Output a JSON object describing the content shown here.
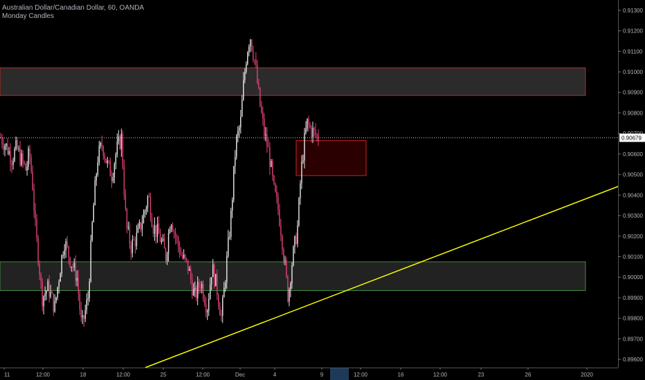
{
  "header": {
    "symbol_line": "Australian Dollar/Canadian Dollar, 60, OANDA",
    "indicator_line": "Monday Candles"
  },
  "colors": {
    "background": "#000000",
    "up_candle": "#e8e8e8",
    "down_candle": "#e0407a",
    "trendline": "#ffff00",
    "resistance_border": "#cc2222",
    "resistance_fill": "#2b2b2b",
    "support_border": "#3f8f3f",
    "support_fill": "#222222",
    "small_zone_fill": "#2a0000",
    "axis_text": "#b2b5be",
    "price_tag_bg": "#ffffff"
  },
  "chart_data": {
    "type": "candlestick",
    "symbol": "Australian Dollar/Canadian Dollar",
    "interval": "60",
    "source": "OANDA",
    "indicator": "Monday Candles",
    "ylim": [
      0.8956,
      0.9135
    ],
    "y_ticks": [
      0.913,
      0.912,
      0.911,
      0.91,
      0.909,
      0.908,
      0.907,
      0.906,
      0.905,
      0.904,
      0.903,
      0.902,
      0.901,
      0.9,
      0.899,
      0.898,
      0.897,
      0.896
    ],
    "y_tick_labels": [
      "0.91300",
      "0.91200",
      "0.91100",
      "0.91000",
      "0.90900",
      "0.90800",
      "0.90700",
      "0.90600",
      "0.90500",
      "0.90400",
      "0.90300",
      "0.90200",
      "0.90100",
      "0.90000",
      "0.89900",
      "0.89800",
      "0.89700",
      "0.89600"
    ],
    "current_price": 0.90679,
    "current_price_label": "0.90679",
    "x_ticks": [
      {
        "label": "11",
        "x": 0
      },
      {
        "label": "12:00",
        "x": 1
      },
      {
        "label": "18",
        "x": 2
      },
      {
        "label": "12:00",
        "x": 3
      },
      {
        "label": "25",
        "x": 4
      },
      {
        "label": "12:00",
        "x": 5
      },
      {
        "label": "Dec",
        "x": 6
      },
      {
        "label": "4",
        "x": 7
      },
      {
        "label": "9",
        "x": 8
      },
      {
        "label": "12:00",
        "x": 9
      },
      {
        "label": "16",
        "x": 10
      },
      {
        "label": "12:00",
        "x": 11
      },
      {
        "label": "23",
        "x": 12
      },
      {
        "label": "26",
        "x": 13
      },
      {
        "label": "2020",
        "x": 14
      }
    ],
    "price_path": [
      [
        0.0,
        0.9068
      ],
      [
        0.02,
        0.9063
      ],
      [
        0.035,
        0.9058
      ],
      [
        0.05,
        0.9063
      ],
      [
        0.065,
        0.9057
      ],
      [
        0.08,
        0.9052
      ],
      [
        0.09,
        0.9061
      ],
      [
        0.1,
        0.9046
      ],
      [
        0.11,
        0.9022
      ],
      [
        0.12,
        0.9008
      ],
      [
        0.13,
        0.899
      ],
      [
        0.15,
        0.8995
      ],
      [
        0.17,
        0.8985
      ],
      [
        0.185,
        0.9002
      ],
      [
        0.2,
        0.9018
      ],
      [
        0.22,
        0.9008
      ],
      [
        0.24,
        0.9
      ],
      [
        0.255,
        0.8975
      ],
      [
        0.275,
        0.899
      ],
      [
        0.29,
        0.903
      ],
      [
        0.305,
        0.9058
      ],
      [
        0.32,
        0.9065
      ],
      [
        0.335,
        0.9055
      ],
      [
        0.35,
        0.905
      ],
      [
        0.365,
        0.9062
      ],
      [
        0.38,
        0.9068
      ],
      [
        0.395,
        0.9025
      ],
      [
        0.41,
        0.9015
      ],
      [
        0.43,
        0.902
      ],
      [
        0.45,
        0.903
      ],
      [
        0.465,
        0.904
      ],
      [
        0.48,
        0.9025
      ],
      [
        0.5,
        0.902
      ],
      [
        0.52,
        0.901
      ],
      [
        0.535,
        0.903
      ],
      [
        0.55,
        0.902
      ],
      [
        0.57,
        0.901
      ],
      [
        0.59,
        0.9005
      ],
      [
        0.61,
        0.899
      ],
      [
        0.63,
        0.8998
      ],
      [
        0.65,
        0.8985
      ],
      [
        0.665,
        0.9005
      ],
      [
        0.68,
        0.8995
      ],
      [
        0.695,
        0.898
      ],
      [
        0.71,
        0.9005
      ],
      [
        0.725,
        0.903
      ],
      [
        0.74,
        0.9065
      ],
      [
        0.755,
        0.9075
      ],
      [
        0.765,
        0.9095
      ],
      [
        0.775,
        0.911
      ],
      [
        0.785,
        0.9118
      ],
      [
        0.8,
        0.9105
      ],
      [
        0.815,
        0.9085
      ],
      [
        0.83,
        0.907
      ],
      [
        0.845,
        0.906
      ],
      [
        0.86,
        0.9042
      ],
      [
        0.875,
        0.9032
      ],
      [
        0.885,
        0.902
      ],
      [
        0.895,
        0.9005
      ],
      [
        0.905,
        0.899
      ],
      [
        0.915,
        0.9005
      ],
      [
        0.925,
        0.9015
      ],
      [
        0.935,
        0.9025
      ],
      [
        0.945,
        0.905
      ],
      [
        0.955,
        0.9065
      ],
      [
        0.965,
        0.9075
      ],
      [
        0.975,
        0.9072
      ],
      [
        1.0,
        0.9068
      ]
    ],
    "zones": [
      {
        "label": "resistance",
        "y_top": 0.9102,
        "y_bottom": 0.90885,
        "x_start": 0.0,
        "x_end": 0.908
      },
      {
        "label": "support",
        "y_top": 0.90075,
        "y_bottom": 0.89935,
        "x_start": 0.0,
        "x_end": 0.908
      },
      {
        "label": "supply",
        "y_top": 0.90665,
        "y_bottom": 0.90495,
        "x_start": 0.461,
        "x_end": 0.568
      }
    ],
    "trendline": {
      "x_start": 0.225,
      "y_start": 0.8956,
      "x_end": 0.96,
      "y_end": 0.9044
    },
    "grid": false
  }
}
